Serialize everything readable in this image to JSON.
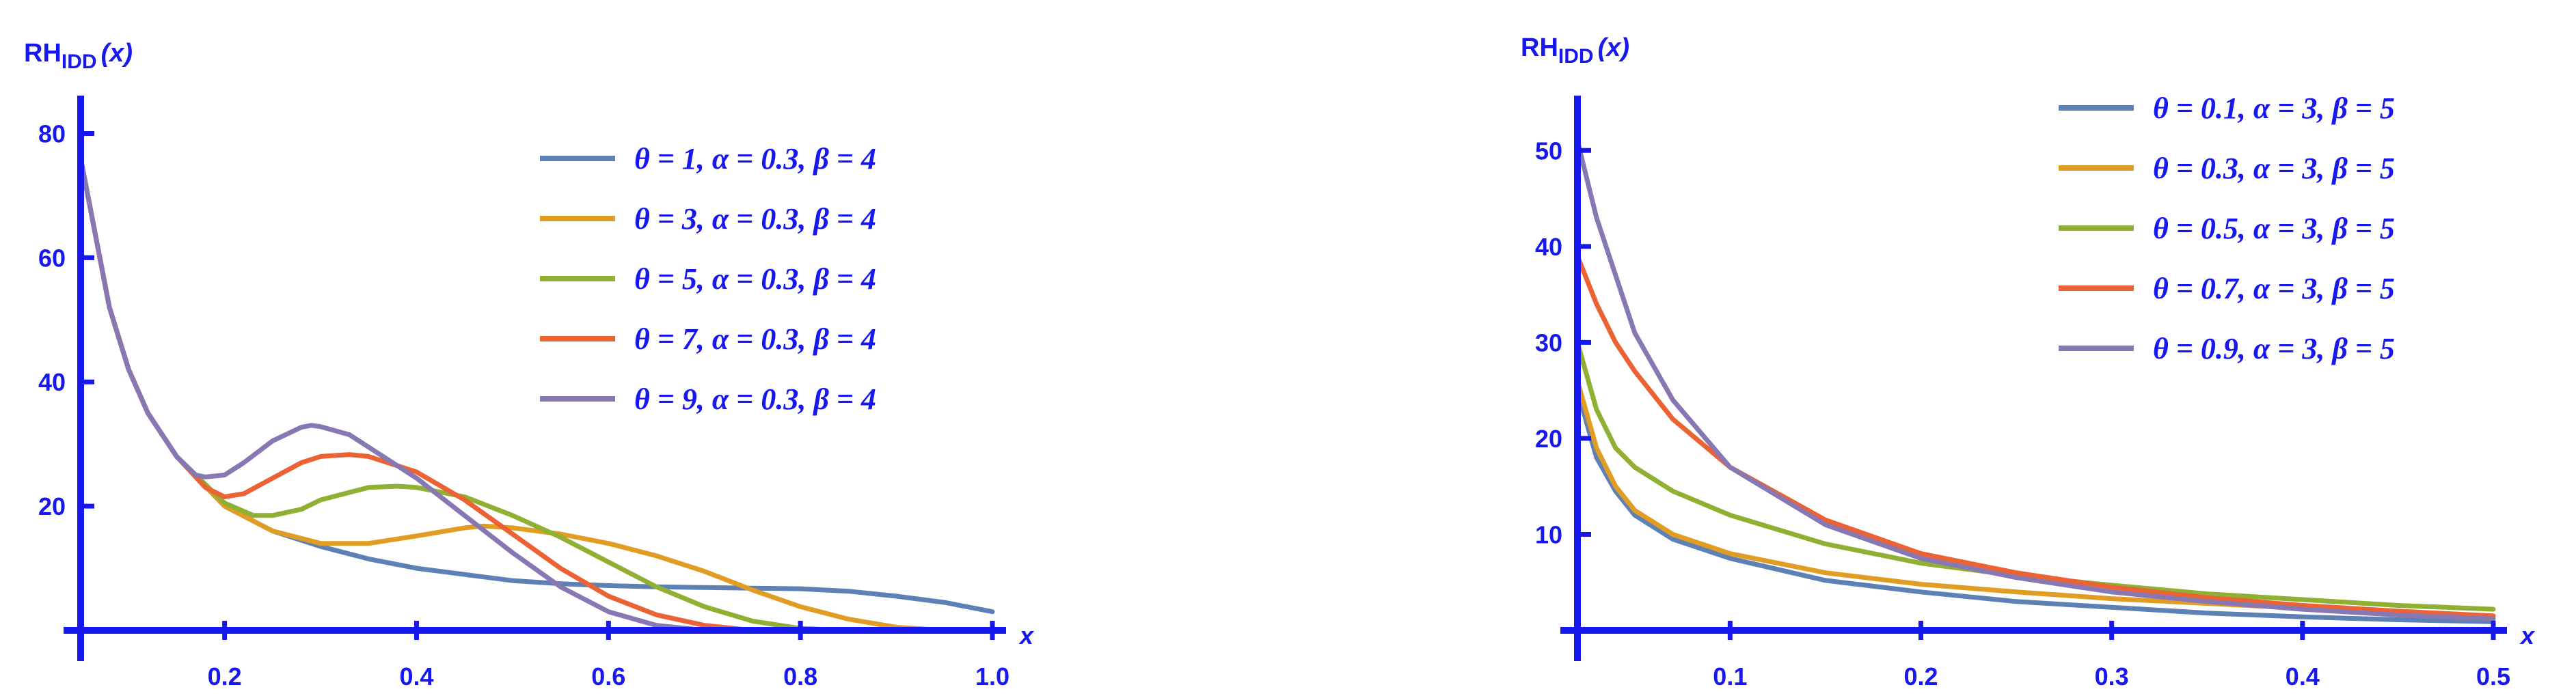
{
  "chart_data": [
    {
      "type": "line",
      "title": "",
      "ylabel": "RHIDD(x)",
      "ylabel_main": "RH",
      "ylabel_sub": "IDD",
      "ylabel_arg": "(x)",
      "xlabel": "x",
      "xlim": [
        0.05,
        1.0
      ],
      "ylim": [
        0,
        85
      ],
      "xticks": [
        0.2,
        0.4,
        0.6,
        0.8,
        1.0
      ],
      "xtick_labels": [
        "0.2",
        "0.4",
        "0.6",
        "0.8",
        "1.0"
      ],
      "yticks": [
        20,
        40,
        60,
        80
      ],
      "ytick_labels": [
        "20",
        "40",
        "60",
        "80"
      ],
      "legend_position": "top-right",
      "grid": false,
      "series": [
        {
          "name": "θ = 1, α = 0.3, β = 4",
          "color": "#5e81b5",
          "x": [
            0.05,
            0.08,
            0.1,
            0.12,
            0.15,
            0.2,
            0.25,
            0.3,
            0.35,
            0.4,
            0.45,
            0.5,
            0.55,
            0.6,
            0.65,
            0.7,
            0.75,
            0.8,
            0.85,
            0.9,
            0.95,
            1.0
          ],
          "y": [
            76,
            52,
            42,
            35,
            28,
            20,
            16,
            13.5,
            11.5,
            10,
            9,
            8,
            7.5,
            7.2,
            7,
            6.9,
            6.8,
            6.7,
            6.3,
            5.5,
            4.5,
            3
          ]
        },
        {
          "name": "θ = 3, α = 0.3, β = 4",
          "color": "#e19c24",
          "x": [
            0.05,
            0.08,
            0.1,
            0.12,
            0.15,
            0.2,
            0.25,
            0.3,
            0.35,
            0.4,
            0.45,
            0.47,
            0.5,
            0.55,
            0.6,
            0.65,
            0.7,
            0.75,
            0.8,
            0.85,
            0.9,
            0.95
          ],
          "y": [
            76,
            52,
            42,
            35,
            28,
            20,
            16,
            14,
            14,
            15.2,
            16.5,
            16.8,
            16.5,
            15.5,
            14,
            12,
            9.5,
            6.5,
            3.8,
            1.8,
            0.5,
            0
          ]
        },
        {
          "name": "θ = 5, α = 0.3, β = 4",
          "color": "#8fb032",
          "x": [
            0.05,
            0.08,
            0.1,
            0.12,
            0.15,
            0.2,
            0.23,
            0.25,
            0.28,
            0.3,
            0.35,
            0.38,
            0.4,
            0.45,
            0.5,
            0.55,
            0.6,
            0.65,
            0.7,
            0.75,
            0.8,
            0.85
          ],
          "y": [
            76,
            52,
            42,
            35,
            28,
            20.5,
            18.5,
            18.5,
            19.5,
            21,
            23,
            23.2,
            23,
            21.5,
            18.5,
            15,
            11,
            7,
            3.8,
            1.5,
            0.3,
            0
          ]
        },
        {
          "name": "θ = 7, α = 0.3, β = 4",
          "color": "#eb6235",
          "x": [
            0.05,
            0.08,
            0.1,
            0.12,
            0.15,
            0.18,
            0.2,
            0.22,
            0.25,
            0.28,
            0.3,
            0.33,
            0.35,
            0.4,
            0.45,
            0.5,
            0.55,
            0.6,
            0.65,
            0.7,
            0.75
          ],
          "y": [
            76,
            52,
            42,
            35,
            28,
            23,
            21.5,
            22,
            24.5,
            27,
            28,
            28.3,
            28,
            25.5,
            21,
            15.5,
            10,
            5.5,
            2.5,
            0.8,
            0
          ]
        },
        {
          "name": "θ = 9, α = 0.3, β = 4",
          "color": "#8778b3",
          "x": [
            0.05,
            0.08,
            0.1,
            0.12,
            0.15,
            0.17,
            0.18,
            0.2,
            0.22,
            0.25,
            0.28,
            0.29,
            0.3,
            0.33,
            0.35,
            0.4,
            0.45,
            0.5,
            0.55,
            0.6,
            0.65,
            0.7
          ],
          "y": [
            76,
            52,
            42,
            35,
            28,
            25,
            24.7,
            25,
            27,
            30.5,
            32.7,
            33,
            32.8,
            31.5,
            29.5,
            24.5,
            18.5,
            12.5,
            7,
            3,
            0.8,
            0
          ]
        }
      ]
    },
    {
      "type": "line",
      "title": "",
      "ylabel": "RHIDD(x)",
      "ylabel_main": "RH",
      "ylabel_sub": "IDD",
      "ylabel_arg": "(x)",
      "xlabel": "x",
      "xlim": [
        0.02,
        0.5
      ],
      "ylim": [
        0,
        55
      ],
      "xticks": [
        0.1,
        0.2,
        0.3,
        0.4,
        0.5
      ],
      "xtick_labels": [
        "0.1",
        "0.2",
        "0.3",
        "0.4",
        "0.5"
      ],
      "yticks": [
        10,
        20,
        30,
        40,
        50
      ],
      "ytick_labels": [
        "10",
        "20",
        "30",
        "40",
        "50"
      ],
      "legend_position": "top-right",
      "grid": false,
      "series": [
        {
          "name": "θ = 0.1, α = 3, β = 5",
          "color": "#5e81b5",
          "x": [
            0.02,
            0.03,
            0.04,
            0.05,
            0.07,
            0.1,
            0.15,
            0.2,
            0.25,
            0.3,
            0.35,
            0.4,
            0.45,
            0.5
          ],
          "y": [
            25,
            18,
            14.5,
            12,
            9.5,
            7.5,
            5.2,
            4,
            3,
            2.4,
            1.8,
            1.4,
            1.1,
            0.9
          ]
        },
        {
          "name": "θ = 0.3, α = 3, β = 5",
          "color": "#e19c24",
          "x": [
            0.02,
            0.03,
            0.04,
            0.05,
            0.07,
            0.1,
            0.15,
            0.2,
            0.25,
            0.3,
            0.35,
            0.4,
            0.45,
            0.5
          ],
          "y": [
            26,
            19,
            15,
            12.5,
            10,
            8,
            6,
            4.8,
            4,
            3.3,
            2.8,
            2.3,
            1.9,
            1.5
          ]
        },
        {
          "name": "θ = 0.5, α = 3, β = 5",
          "color": "#8fb032",
          "x": [
            0.02,
            0.03,
            0.04,
            0.05,
            0.07,
            0.1,
            0.15,
            0.2,
            0.25,
            0.3,
            0.35,
            0.4,
            0.45,
            0.5
          ],
          "y": [
            30,
            23,
            19,
            17,
            14.5,
            12,
            9,
            7,
            5.7,
            4.7,
            3.8,
            3.2,
            2.6,
            2.2
          ]
        },
        {
          "name": "θ = 0.7, α = 3, β = 5",
          "color": "#eb6235",
          "x": [
            0.02,
            0.03,
            0.04,
            0.05,
            0.07,
            0.1,
            0.15,
            0.2,
            0.25,
            0.3,
            0.35,
            0.4,
            0.45,
            0.5
          ],
          "y": [
            39,
            34,
            30,
            27,
            22,
            17,
            11.5,
            8,
            6,
            4.5,
            3.4,
            2.6,
            2,
            1.5
          ]
        },
        {
          "name": "θ = 0.9, α = 3, β = 5",
          "color": "#8778b3",
          "x": [
            0.02,
            0.03,
            0.04,
            0.05,
            0.07,
            0.1,
            0.15,
            0.2,
            0.25,
            0.3,
            0.35,
            0.4,
            0.45,
            0.5
          ],
          "y": [
            51,
            43,
            37,
            31,
            24,
            17,
            11,
            7.5,
            5.5,
            4,
            3,
            2.2,
            1.6,
            1.2
          ]
        }
      ]
    }
  ]
}
